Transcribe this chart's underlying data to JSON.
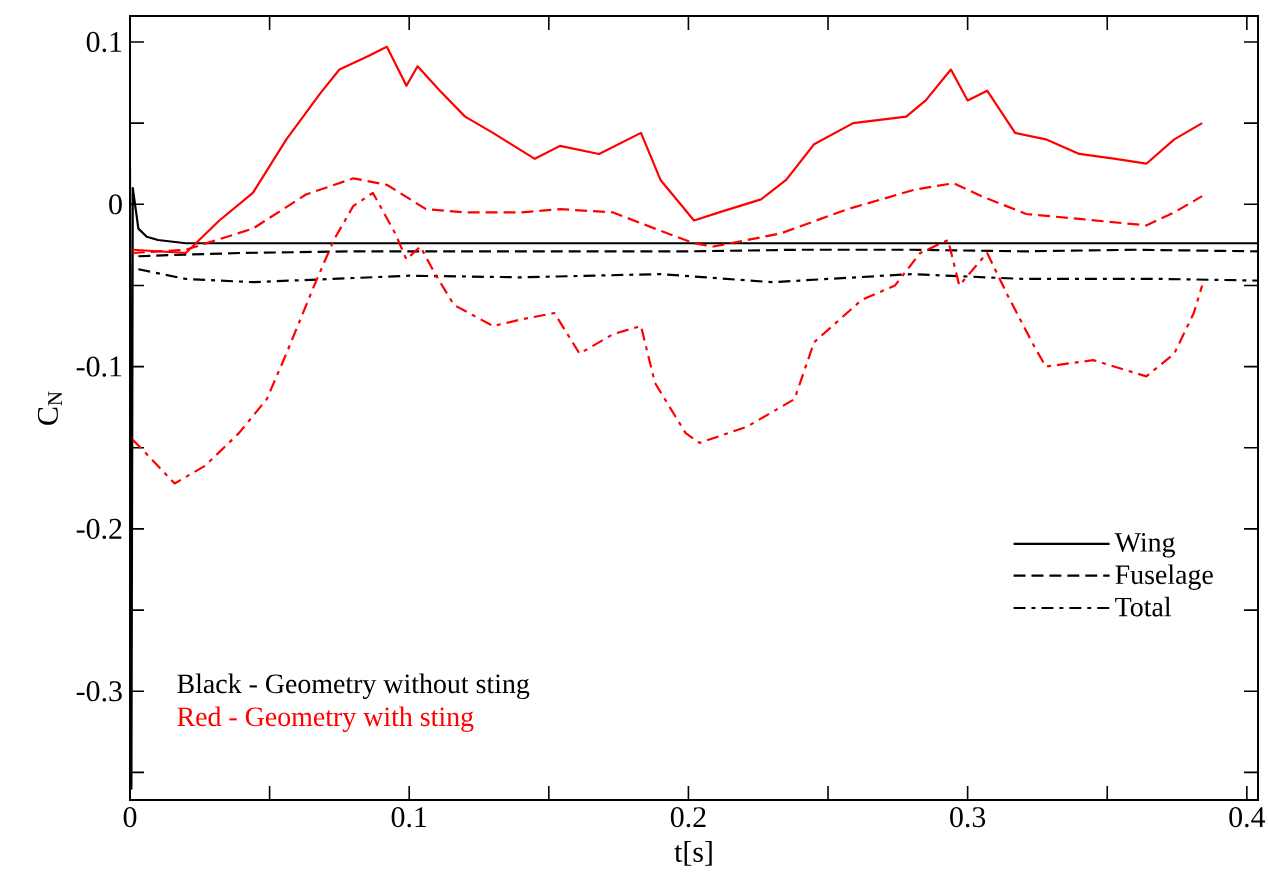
{
  "chart_data": {
    "type": "line",
    "xlabel": "t[s]",
    "ylabel": "C$_{N}$",
    "xlim": [
      0,
      0.404
    ],
    "ylim": [
      -0.367,
      0.116
    ],
    "xticks": [
      0,
      {
        "value": 0.05,
        "label": null
      },
      0.1,
      {
        "value": 0.15,
        "label": null
      },
      0.2,
      {
        "value": 0.25,
        "label": null
      },
      0.3,
      {
        "value": 0.35,
        "label": null
      },
      0.4
    ],
    "yticks": [
      {
        "value": -0.35,
        "label": null
      },
      -0.3,
      {
        "value": -0.25,
        "label": null
      },
      -0.2,
      {
        "value": -0.15,
        "label": null
      },
      -0.1,
      {
        "value": -0.05,
        "label": null
      },
      0,
      {
        "value": 0.05,
        "label": null
      },
      0.1
    ],
    "legend": "bottom right",
    "annotations": [
      "Black - Geometry without sting",
      "Red - Geometry with sting"
    ],
    "series": [
      {
        "name": "Wing",
        "color": "#000000",
        "line_style": "solid",
        "x": [
          0,
          0.0005,
          0.001,
          0.003,
          0.006,
          0.01,
          0.02,
          0.03,
          0.06,
          0.1,
          0.15,
          0.2,
          0.25,
          0.3,
          0.35,
          0.404
        ],
        "values": [
          0.022,
          -0.36,
          0.01,
          -0.015,
          -0.02,
          -0.022,
          -0.024,
          -0.024,
          -0.024,
          -0.024,
          -0.024,
          -0.024,
          -0.024,
          -0.024,
          -0.024,
          -0.024
        ]
      },
      {
        "name": "Fuselage",
        "color": "#000000",
        "line_style": "dashed",
        "x": [
          0.003,
          0.02,
          0.04,
          0.08,
          0.12,
          0.16,
          0.2,
          0.24,
          0.28,
          0.32,
          0.36,
          0.404
        ],
        "values": [
          -0.032,
          -0.031,
          -0.03,
          -0.029,
          -0.029,
          -0.029,
          -0.029,
          -0.028,
          -0.028,
          -0.029,
          -0.028,
          -0.029
        ]
      },
      {
        "name": "Total",
        "color": "#000000",
        "line_style": "dashdotted",
        "x": [
          0.003,
          0.02,
          0.044,
          0.1,
          0.14,
          0.19,
          0.23,
          0.26,
          0.28,
          0.32,
          0.37,
          0.404
        ],
        "values": [
          -0.04,
          -0.046,
          -0.048,
          -0.044,
          -0.045,
          -0.043,
          -0.048,
          -0.045,
          -0.043,
          -0.046,
          -0.046,
          -0.047
        ]
      },
      {
        "color": "#ff0000",
        "line_style": "solid",
        "x": [
          0.001,
          0.02,
          0.032,
          0.044,
          0.056,
          0.068,
          0.075,
          0.085,
          0.092,
          0.099,
          0.103,
          0.111,
          0.12,
          0.13,
          0.145,
          0.154,
          0.168,
          0.183,
          0.19,
          0.202,
          0.211,
          0.226,
          0.235,
          0.245,
          0.259,
          0.278,
          0.285,
          0.294,
          0.3,
          0.307,
          0.317,
          0.328,
          0.34,
          0.353,
          0.364,
          0.374,
          0.384
        ],
        "values": [
          -0.028,
          -0.03,
          -0.01,
          0.007,
          0.04,
          0.068,
          0.083,
          0.091,
          0.097,
          0.073,
          0.085,
          0.07,
          0.054,
          0.044,
          0.028,
          0.036,
          0.031,
          0.044,
          0.015,
          -0.01,
          -0.005,
          0.003,
          0.015,
          0.037,
          0.05,
          0.054,
          0.064,
          0.083,
          0.064,
          0.07,
          0.044,
          0.04,
          0.031,
          0.028,
          0.025,
          0.04,
          0.05
        ]
      },
      {
        "color": "#ff0000",
        "line_style": "dashed",
        "x": [
          0.001,
          0.02,
          0.044,
          0.063,
          0.08,
          0.092,
          0.106,
          0.12,
          0.14,
          0.154,
          0.173,
          0.188,
          0.202,
          0.209,
          0.233,
          0.257,
          0.281,
          0.295,
          0.305,
          0.321,
          0.34,
          0.364,
          0.374,
          0.384
        ],
        "values": [
          -0.03,
          -0.028,
          -0.015,
          0.006,
          0.016,
          0.012,
          -0.003,
          -0.005,
          -0.005,
          -0.003,
          -0.005,
          -0.015,
          -0.024,
          -0.026,
          -0.018,
          -0.003,
          0.009,
          0.013,
          0.005,
          -0.006,
          -0.009,
          -0.013,
          -0.005,
          0.005
        ]
      },
      {
        "color": "#ff0000",
        "line_style": "dashdotted",
        "x": [
          0.001,
          0.016,
          0.027,
          0.039,
          0.049,
          0.056,
          0.066,
          0.073,
          0.08,
          0.087,
          0.095,
          0.099,
          0.104,
          0.109,
          0.116,
          0.13,
          0.14,
          0.152,
          0.161,
          0.173,
          0.183,
          0.188,
          0.199,
          0.204,
          0.221,
          0.238,
          0.245,
          0.262,
          0.274,
          0.283,
          0.293,
          0.297,
          0.307,
          0.314,
          0.324,
          0.328,
          0.345,
          0.364,
          0.374,
          0.381,
          0.384
        ],
        "values": [
          -0.145,
          -0.172,
          -0.161,
          -0.141,
          -0.12,
          -0.092,
          -0.05,
          -0.022,
          -0.001,
          0.007,
          -0.018,
          -0.034,
          -0.026,
          -0.042,
          -0.062,
          -0.075,
          -0.071,
          -0.067,
          -0.092,
          -0.08,
          -0.075,
          -0.11,
          -0.141,
          -0.147,
          -0.137,
          -0.12,
          -0.085,
          -0.059,
          -0.05,
          -0.03,
          -0.022,
          -0.05,
          -0.03,
          -0.055,
          -0.088,
          -0.1,
          -0.096,
          -0.106,
          -0.092,
          -0.067,
          -0.05
        ]
      }
    ]
  }
}
